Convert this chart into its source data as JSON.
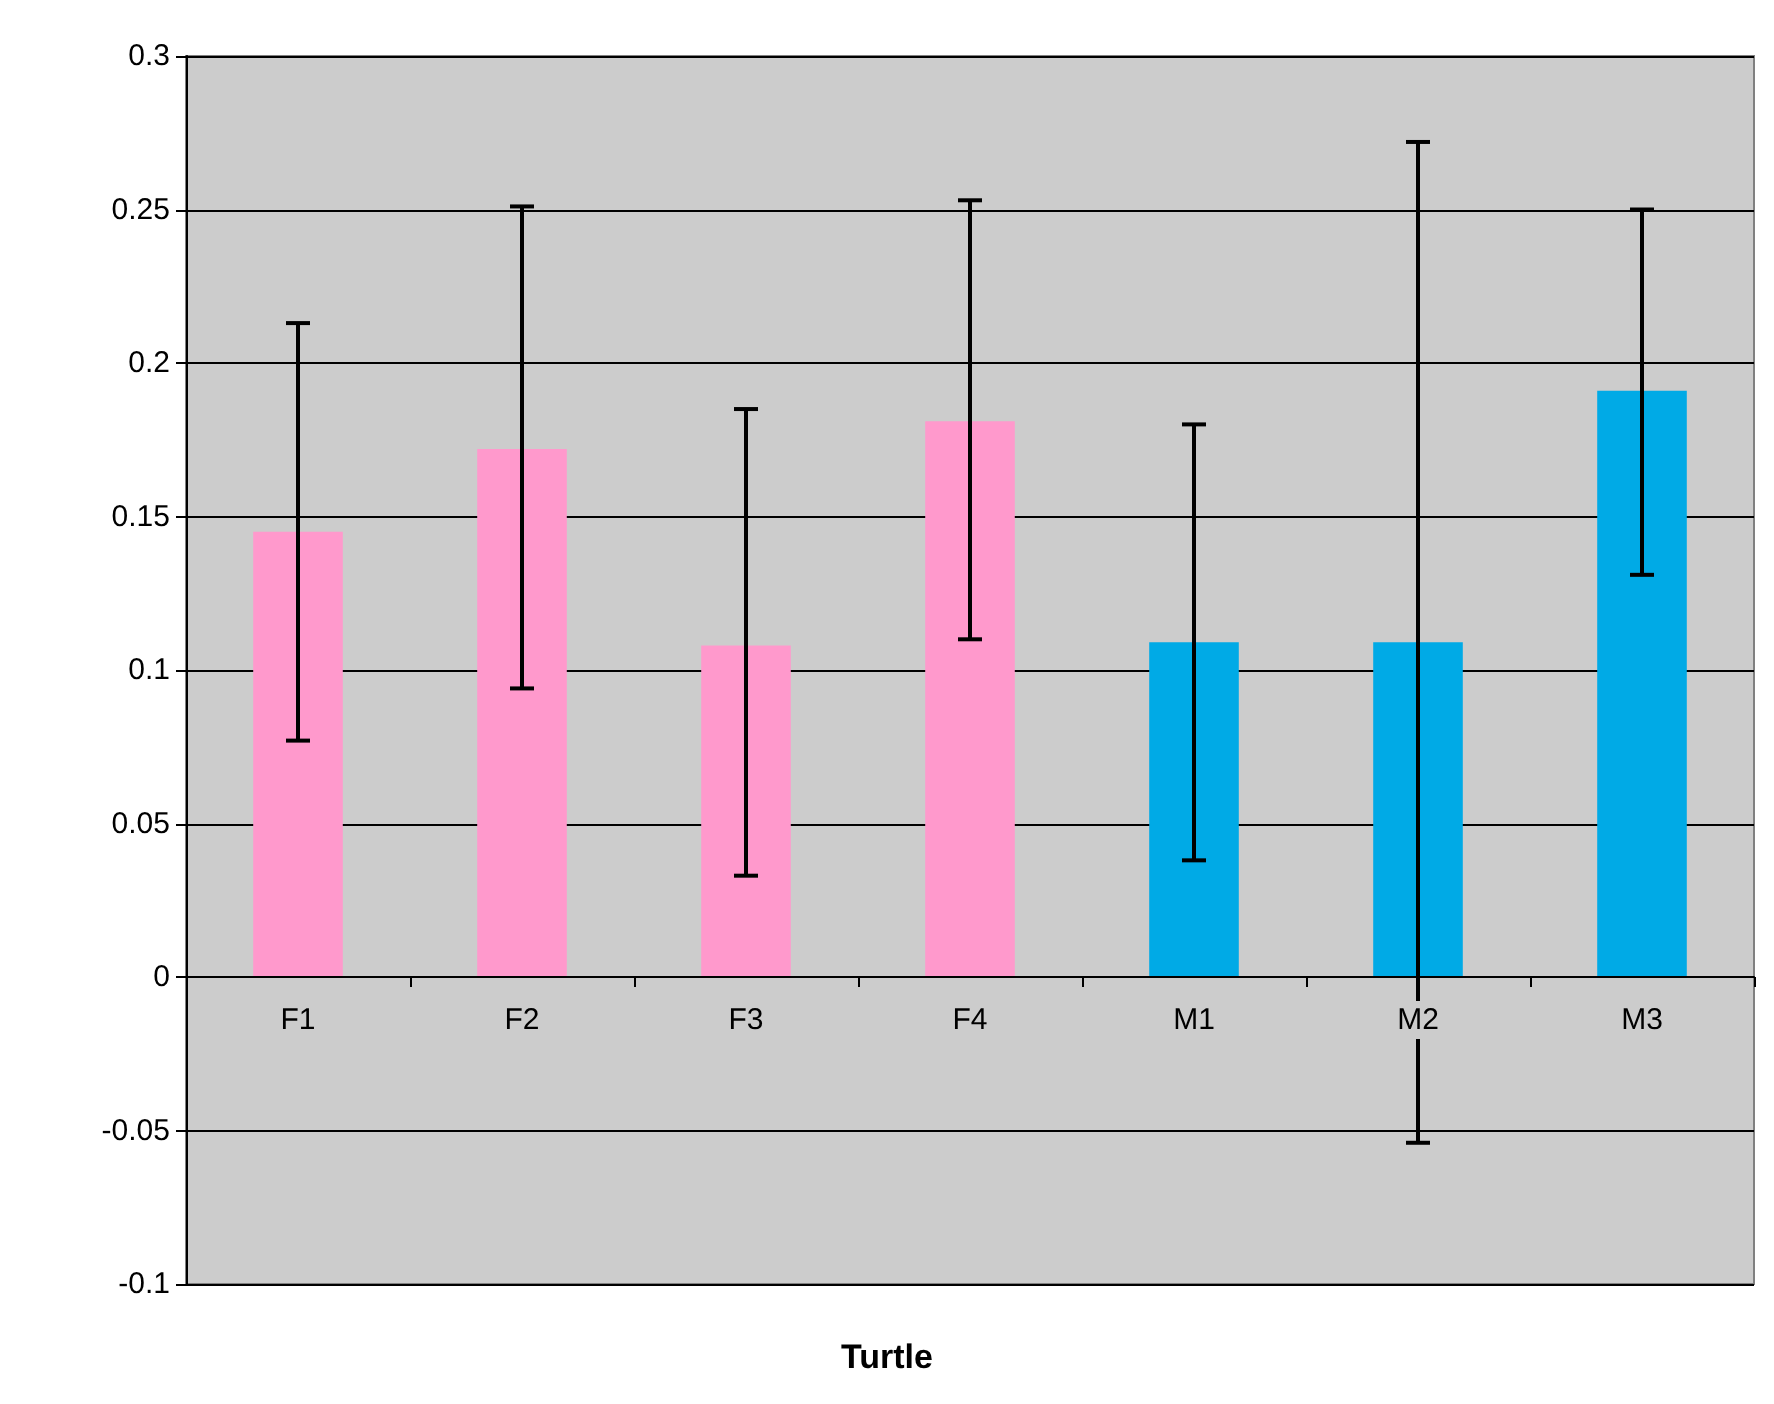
{
  "chart_data": {
    "type": "bar",
    "xlabel": "Turtle",
    "categories": [
      "F1",
      "F2",
      "F3",
      "F4",
      "M1",
      "M2",
      "M3"
    ],
    "values": [
      0.145,
      0.172,
      0.108,
      0.181,
      0.109,
      0.109,
      0.191
    ],
    "colors": [
      "#ff99cc",
      "#ff99cc",
      "#ff99cc",
      "#ff99cc",
      "#00aae6",
      "#00aae6",
      "#00aae6"
    ],
    "errors": [
      [
        0.077,
        0.213
      ],
      [
        0.094,
        0.251
      ],
      [
        0.033,
        0.185
      ],
      [
        0.11,
        0.253
      ],
      [
        0.038,
        0.18
      ],
      [
        -0.054,
        0.272
      ],
      [
        0.131,
        0.25
      ]
    ],
    "ylim": [
      -0.1,
      0.3
    ],
    "yticks": [
      -0.1,
      -0.05,
      0,
      0.05,
      0.1,
      0.15,
      0.2,
      0.25,
      0.3
    ],
    "grid": "y"
  }
}
